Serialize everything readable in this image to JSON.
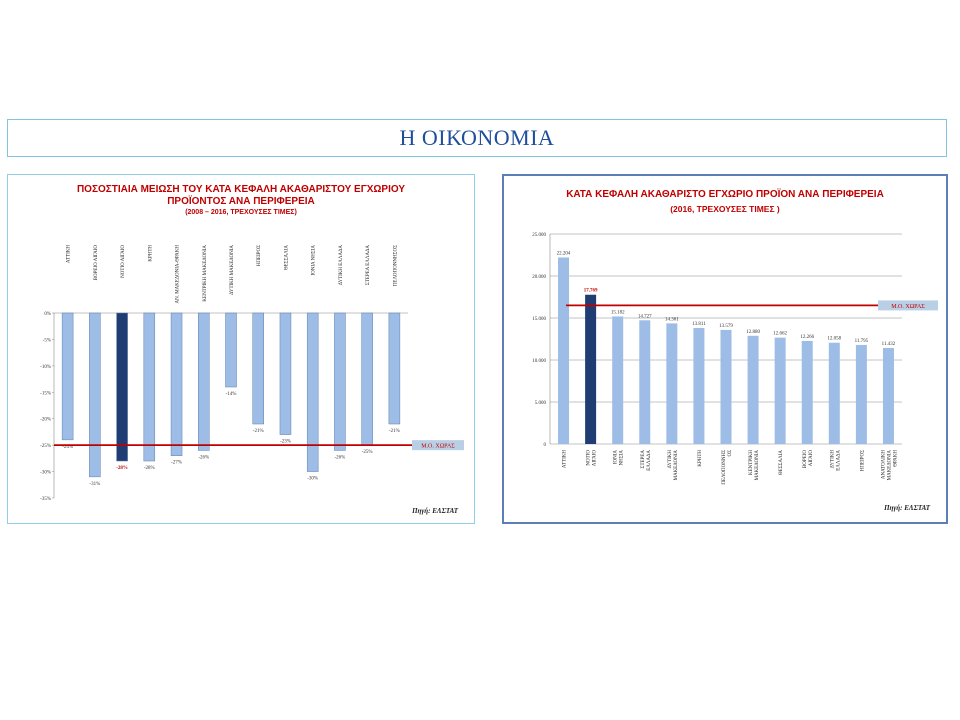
{
  "page": {
    "title": "Η ΟΙΚΟΝΟΜΙΑ"
  },
  "colors": {
    "bar": "#9dbde6",
    "highlight": "#1f3d73",
    "avg_line": "#c00000",
    "title": "#1f4e9a"
  },
  "left_chart": {
    "title_line1": "ΠΟΣΟΣΤΙΑΙΑ ΜΕΙΩΣΗ ΤΟΥ ΚΑΤΑ ΚΕΦΑΛΗ ΑΚΑΘΑΡΙΣΤΟΥ ΕΓΧΩΡΙΟΥ",
    "title_line2": "ΠΡΟΪΟΝΤΟΣ ΑΝΑ ΠΕΡΙΦΕΡΕΙΑ",
    "subtitle": "(2008 – 2016, ΤΡΕΧΟΥΣΕΣ ΤΙΜΕΣ)",
    "avg_label": "Μ.Ο. ΧΩΡΑΣ",
    "source": "Πηγή: ΕΛΣΤΑΤ"
  },
  "right_chart": {
    "title_line1": "ΚΑΤΑ ΚΕΦΑΛΗ ΑΚΑΘΑΡΙΣΤΟ ΕΓΧΩΡΙΟ ΠΡΟΪΟΝ ΑΝΑ ΠΕΡΙΦΕΡΕΙΑ",
    "subtitle": "(2016, ΤΡΕΧΟΥΣΕΣ ΤΙΜΕΣ )",
    "avg_label": "Μ.Ο. ΧΩΡΑΣ",
    "source": "Πηγή: ΕΛΣΤΑΤ"
  },
  "chart_data": [
    {
      "type": "bar",
      "title": "ΠΟΣΟΣΤΙΑΙΑ ΜΕΙΩΣΗ ΤΟΥ ΚΑΤΑ ΚΕΦΑΛΗ ΑΚΑΘΑΡΙΣΤΟΥ ΕΓΧΩΡΙΟΥ ΠΡΟΪΟΝΤΟΣ ΑΝΑ ΠΕΡΙΦΕΡΕΙΑ",
      "subtitle": "(2008 – 2016, ΤΡΕΧΟΥΣΕΣ ΤΙΜΕΣ)",
      "categories": [
        "ΑΤΤΙΚΗ",
        "ΒΟΡΕΙΟ ΑΙΓΑΙΟ",
        "ΝΟΤΙΟ ΑΙΓΑΙΟ",
        "ΚΡΗΤΗ",
        "ΑΝ. ΜΑΚΕΔΟΝΙΑ-ΘΡΑΚΗ",
        "ΚΕΝΤΡΙΚΗ ΜΑΚΕΔΟΝΙΑ",
        "ΔΥΤΙΚΗ ΜΑΚΕΔΟΝΙΑ",
        "ΗΠΕΙΡΟΣ",
        "ΘΕΣΣΑΛΙΑ",
        "ΙΟΝΙΑ ΝΗΣΙΑ",
        "ΔΥΤΙΚΗ ΕΛΛΑΔΑ",
        "ΣΤΕΡΕΑ ΕΛΛΑΔΑ",
        "ΠΕΛΟΠΟΝΝΗΣΟΣ"
      ],
      "values": [
        -24,
        -31,
        -28,
        -28,
        -27,
        -26,
        -14,
        -21,
        -23,
        -30,
        -26,
        -25,
        -21
      ],
      "value_labels": [
        "-24%",
        "-31%",
        "-28%",
        "-28%",
        "-27%",
        "-26%",
        "-14%",
        "-21%",
        "-23%",
        "-30%",
        "-26%",
        "-25%",
        "-21%"
      ],
      "highlight_index": 2,
      "average": -25,
      "ylim": [
        -35,
        0
      ],
      "yticks": [
        0,
        -5,
        -10,
        -15,
        -20,
        -25,
        -30,
        -35
      ],
      "ytick_labels": [
        "0%",
        "-5%",
        "-10%",
        "-15%",
        "-20%",
        "-25%",
        "-30%",
        "-35%"
      ],
      "grid": false
    },
    {
      "type": "bar",
      "title": "ΚΑΤΑ ΚΕΦΑΛΗ ΑΚΑΘΑΡΙΣΤΟ ΕΓΧΩΡΙΟ ΠΡΟΪΟΝ ΑΝΑ ΠΕΡΙΦΕΡΕΙΑ",
      "subtitle": "(2016, ΤΡΕΧΟΥΣΕΣ ΤΙΜΕΣ )",
      "categories": [
        "ΑΤΤΙΚΗ",
        "ΝΟΤΙΟ ΑΙΓΑΙΟ",
        "ΙΟΝΙΑ ΝΗΣΙΑ",
        "ΣΤΕΡΕΑ ΕΛΛΑΔΑ",
        "ΔΥΤΙΚΗ ΜΑΚΕΔΟΝΙΑ",
        "ΚΡΗΤΗ",
        "ΠΕΛΟΠΟΝΝΗΣ ΟΣ",
        "ΚΕΝΤΡΙΚΗ ΜΑΚΕΔΟΝΙΑ",
        "ΘΕΣΣΑΛΙΑ",
        "ΒΟΡΕΙΟ ΑΙΓΑΙΟ",
        "ΔΥΤΙΚΗ ΕΛΛΑΔΑ",
        "ΗΠΕΙΡΟΣ",
        "ΑΝΑΤΟΛΙΚΗ ΜΑΚΕΔΟΝΙΑ ΘΡΑΚΗ"
      ],
      "values": [
        22204,
        17769,
        15182,
        14727,
        14361,
        13811,
        13579,
        12880,
        12662,
        12266,
        12058,
        11795,
        11432
      ],
      "value_labels": [
        "22.204",
        "17.769",
        "15.182",
        "14.727",
        "14.361",
        "13.811",
        "13.579",
        "12.880",
        "12.662",
        "12.266",
        "12.058",
        "11.795",
        "11.432"
      ],
      "highlight_index": 1,
      "average": 16500,
      "ylim": [
        0,
        25000
      ],
      "yticks": [
        0,
        5000,
        10000,
        15000,
        20000,
        25000
      ],
      "ytick_labels": [
        "0",
        "5.000",
        "10.000",
        "15.000",
        "20.000",
        "25.000"
      ],
      "grid": true
    }
  ]
}
